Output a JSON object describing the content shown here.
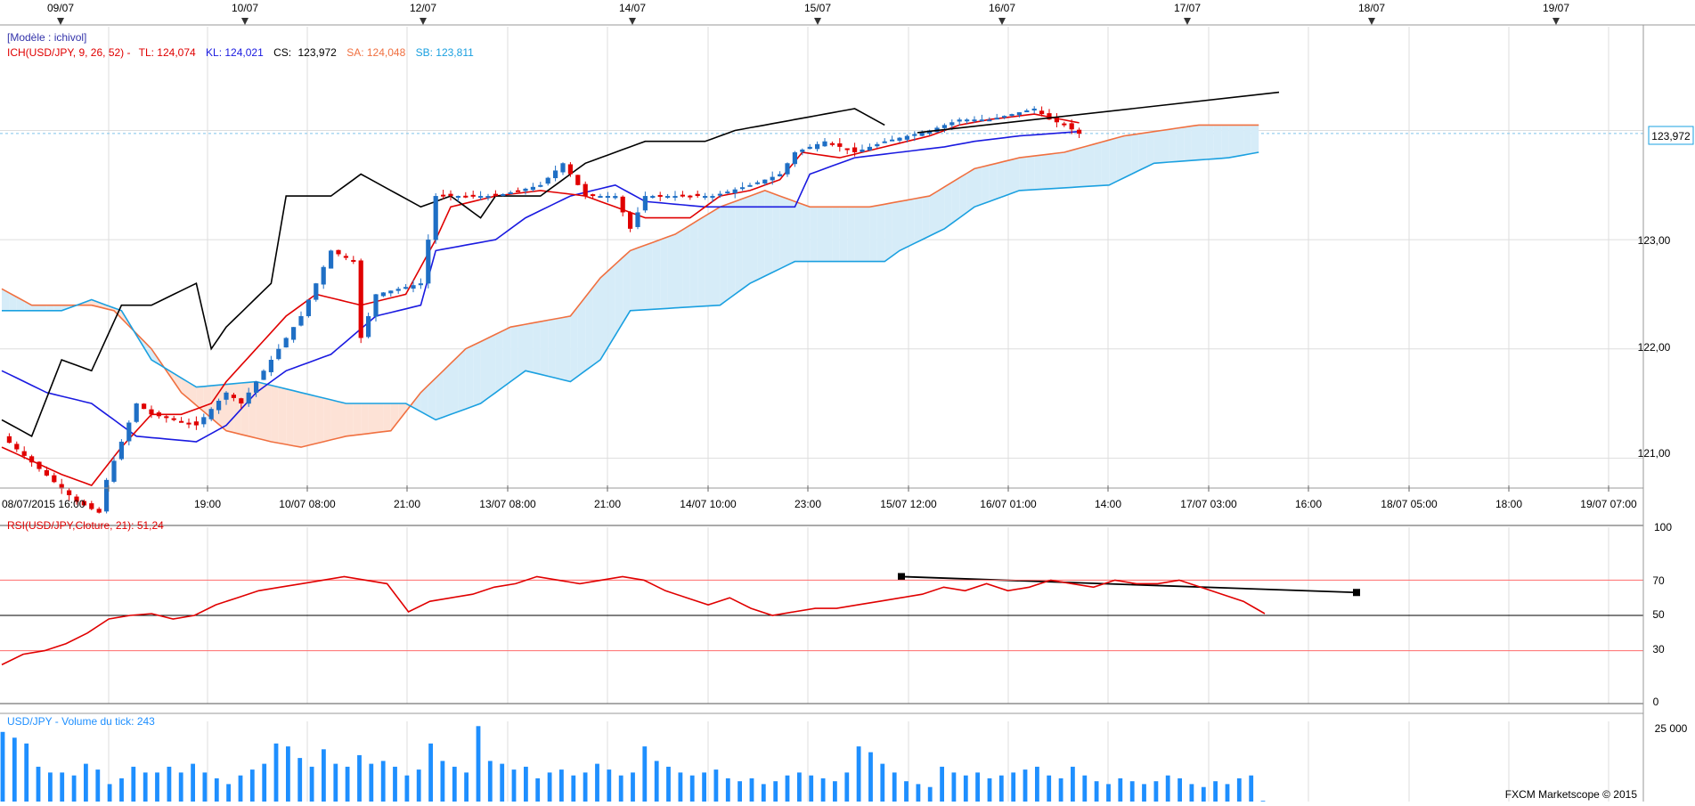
{
  "colors": {
    "bull": "#1f6fc5",
    "bear": "#e00000",
    "tenkan": "#e00000",
    "kijun": "#1a1ae0",
    "chikou": "#000000",
    "senkou_a": "#f07040",
    "senkou_b": "#1aa0e0",
    "cloud_bull": "#d6ecf8",
    "cloud_bear": "#fde2d6",
    "rsi": "#e00000",
    "volume": "#1e8fff",
    "grid": "#dddddd",
    "model_label": "#3333aa"
  },
  "top_dates": {
    "labels": [
      "09/07",
      "10/07",
      "12/07",
      "14/07",
      "15/07",
      "16/07",
      "17/07",
      "18/07",
      "19/07"
    ]
  },
  "main_panel": {
    "model_label": "[Modèle : ichivol]",
    "legend": {
      "ich": "ICH(USD/JPY, 9, 26, 52) -",
      "tl": "TL: 124,074",
      "kl": "KL: 124,021",
      "cs_label": "CS:",
      "cs_value": "123,972",
      "sa": "SA: 124,048",
      "sb": "SB: 123,811"
    },
    "current_price": "123,972",
    "y_ticks": [
      "123,00",
      "122,00",
      "121,00"
    ]
  },
  "bottom_axis": {
    "labels": [
      "08/07/2015 16:00",
      "19:00",
      "10/07 08:00",
      "21:00",
      "13/07 08:00",
      "21:00",
      "14/07 10:00",
      "23:00",
      "15/07 12:00",
      "16/07 01:00",
      "14:00",
      "17/07 03:00",
      "16:00",
      "18/07 05:00",
      "18:00",
      "19/07 07:00"
    ]
  },
  "rsi_panel": {
    "label": "RSI(USD/JPY,Cloture, 21): 51,24",
    "y_ticks": [
      "100",
      "70",
      "50",
      "30",
      "0"
    ]
  },
  "volume_panel": {
    "label": "USD/JPY - Volume du tick: 243",
    "y_tick": "25 000",
    "copyright": "FXCM Marketscope © 2015"
  },
  "chart_data": [
    {
      "type": "candlestick",
      "series": [
        {
          "name": "ICH(USD/JPY, 9, 26, 52)"
        }
      ],
      "x": [
        "08/07/2015 16:00",
        "19:00",
        "10/07 08:00",
        "21:00",
        "13/07 08:00",
        "21:00",
        "14/07 10:00",
        "23:00",
        "15/07 12:00",
        "16/07 01:00",
        "14:00",
        "17/07 03:00",
        "16:00",
        "18/07 05:00",
        "18:00",
        "19/07 07:00"
      ],
      "ylim": [
        120.75,
        124.95
      ],
      "grid": true,
      "anchors": {
        "close": [
          [
            0,
            121.2
          ],
          [
            10,
            120.6
          ],
          [
            13,
            120.5
          ],
          [
            14,
            120.8
          ],
          [
            18,
            121.5
          ],
          [
            20,
            121.4
          ],
          [
            26,
            121.3
          ],
          [
            30,
            121.6
          ],
          [
            32,
            121.5
          ],
          [
            36,
            121.9
          ],
          [
            40,
            122.3
          ],
          [
            44,
            122.9
          ],
          [
            47,
            122.8
          ],
          [
            48,
            122.1
          ],
          [
            50,
            122.5
          ],
          [
            56,
            122.6
          ],
          [
            58,
            123.4
          ],
          [
            62,
            123.4
          ],
          [
            66,
            123.4
          ],
          [
            72,
            123.5
          ],
          [
            75,
            123.7
          ],
          [
            78,
            123.4
          ],
          [
            82,
            123.4
          ],
          [
            84,
            123.1
          ],
          [
            86,
            123.4
          ],
          [
            95,
            123.4
          ],
          [
            100,
            123.5
          ],
          [
            104,
            123.6
          ],
          [
            106,
            123.8
          ],
          [
            110,
            123.9
          ],
          [
            114,
            123.8
          ],
          [
            118,
            123.9
          ],
          [
            124,
            124.0
          ],
          [
            128,
            124.1
          ],
          [
            132,
            124.1
          ],
          [
            138,
            124.2
          ],
          [
            140,
            124.1
          ],
          [
            142,
            124.05
          ],
          [
            144,
            123.97
          ]
        ],
        "tenkan": [
          [
            0,
            121.1
          ],
          [
            8,
            120.85
          ],
          [
            12,
            120.75
          ],
          [
            16,
            121.1
          ],
          [
            20,
            121.4
          ],
          [
            24,
            121.4
          ],
          [
            28,
            121.5
          ],
          [
            30,
            121.7
          ],
          [
            34,
            122.0
          ],
          [
            38,
            122.3
          ],
          [
            42,
            122.5
          ],
          [
            48,
            122.4
          ],
          [
            54,
            122.5
          ],
          [
            58,
            123.0
          ],
          [
            60,
            123.3
          ],
          [
            66,
            123.4
          ],
          [
            72,
            123.45
          ],
          [
            78,
            123.4
          ],
          [
            82,
            123.3
          ],
          [
            86,
            123.2
          ],
          [
            92,
            123.2
          ],
          [
            96,
            123.4
          ],
          [
            100,
            123.45
          ],
          [
            104,
            123.55
          ],
          [
            107,
            123.8
          ],
          [
            112,
            123.75
          ],
          [
            118,
            123.85
          ],
          [
            124,
            123.95
          ],
          [
            128,
            124.05
          ],
          [
            132,
            124.1
          ],
          [
            138,
            124.15
          ],
          [
            144,
            124.07
          ]
        ],
        "kijun": [
          [
            0,
            121.8
          ],
          [
            6,
            121.6
          ],
          [
            12,
            121.5
          ],
          [
            18,
            121.2
          ],
          [
            26,
            121.15
          ],
          [
            30,
            121.3
          ],
          [
            34,
            121.6
          ],
          [
            38,
            121.8
          ],
          [
            44,
            121.95
          ],
          [
            50,
            122.3
          ],
          [
            56,
            122.4
          ],
          [
            58,
            122.9
          ],
          [
            66,
            123.0
          ],
          [
            70,
            123.2
          ],
          [
            76,
            123.4
          ],
          [
            82,
            123.5
          ],
          [
            86,
            123.35
          ],
          [
            94,
            123.3
          ],
          [
            100,
            123.3
          ],
          [
            106,
            123.3
          ],
          [
            108,
            123.6
          ],
          [
            114,
            123.75
          ],
          [
            120,
            123.8
          ],
          [
            126,
            123.85
          ],
          [
            130,
            123.9
          ],
          [
            136,
            123.95
          ],
          [
            144,
            123.99
          ]
        ],
        "senkou_a": [
          [
            0,
            122.55
          ],
          [
            4,
            122.4
          ],
          [
            12,
            122.4
          ],
          [
            15,
            122.35
          ],
          [
            20,
            122.0
          ],
          [
            24,
            121.6
          ],
          [
            30,
            121.25
          ],
          [
            36,
            121.15
          ],
          [
            40,
            121.1
          ],
          [
            46,
            121.2
          ],
          [
            52,
            121.25
          ],
          [
            56,
            121.6
          ],
          [
            62,
            122.0
          ],
          [
            68,
            122.2
          ],
          [
            76,
            122.3
          ],
          [
            80,
            122.65
          ],
          [
            84,
            122.9
          ],
          [
            90,
            123.05
          ],
          [
            96,
            123.3
          ],
          [
            102,
            123.45
          ],
          [
            108,
            123.3
          ],
          [
            116,
            123.3
          ],
          [
            124,
            123.4
          ],
          [
            130,
            123.65
          ],
          [
            136,
            123.75
          ],
          [
            142,
            123.8
          ],
          [
            150,
            123.95
          ],
          [
            160,
            124.05
          ],
          [
            168,
            124.05
          ]
        ],
        "senkou_b": [
          [
            0,
            122.35
          ],
          [
            8,
            122.35
          ],
          [
            12,
            122.45
          ],
          [
            16,
            122.35
          ],
          [
            20,
            121.9
          ],
          [
            26,
            121.65
          ],
          [
            34,
            121.7
          ],
          [
            46,
            121.5
          ],
          [
            54,
            121.5
          ],
          [
            58,
            121.35
          ],
          [
            64,
            121.5
          ],
          [
            70,
            121.8
          ],
          [
            76,
            121.7
          ],
          [
            80,
            121.9
          ],
          [
            84,
            122.35
          ],
          [
            96,
            122.4
          ],
          [
            100,
            122.6
          ],
          [
            106,
            122.8
          ],
          [
            118,
            122.8
          ],
          [
            120,
            122.9
          ],
          [
            126,
            123.1
          ],
          [
            130,
            123.3
          ],
          [
            136,
            123.45
          ],
          [
            148,
            123.5
          ],
          [
            154,
            123.7
          ],
          [
            164,
            123.75
          ],
          [
            168,
            123.8
          ]
        ],
        "chikou": [
          [
            0,
            121.35
          ],
          [
            4,
            121.2
          ],
          [
            8,
            121.9
          ],
          [
            12,
            121.8
          ],
          [
            16,
            122.4
          ],
          [
            20,
            122.4
          ],
          [
            26,
            122.6
          ],
          [
            28,
            122.0
          ],
          [
            30,
            122.2
          ],
          [
            36,
            122.6
          ],
          [
            38,
            123.4
          ],
          [
            44,
            123.4
          ],
          [
            48,
            123.6
          ],
          [
            52,
            123.45
          ],
          [
            56,
            123.3
          ],
          [
            60,
            123.4
          ],
          [
            64,
            123.2
          ],
          [
            66,
            123.4
          ],
          [
            72,
            123.4
          ],
          [
            78,
            123.7
          ],
          [
            86,
            123.9
          ],
          [
            94,
            123.9
          ],
          [
            98,
            124.0
          ],
          [
            106,
            124.1
          ],
          [
            114,
            124.2
          ],
          [
            118,
            124.05
          ]
        ]
      }
    },
    {
      "type": "line",
      "series": [
        {
          "name": "RSI(USD/JPY,Cloture, 21)",
          "values": [
            22,
            28,
            30,
            34,
            40,
            48,
            50,
            51,
            48,
            50,
            56,
            60,
            64,
            66,
            68,
            70,
            72,
            70,
            68,
            52,
            58,
            60,
            62,
            66,
            68,
            72,
            70,
            68,
            70,
            72,
            70,
            64,
            60,
            56,
            60,
            54,
            50,
            52,
            54,
            54,
            56,
            58,
            60,
            62,
            66,
            64,
            68,
            64,
            66,
            70,
            68,
            66,
            70,
            68,
            68,
            70,
            66,
            62,
            58,
            51
          ]
        }
      ],
      "ylim": [
        0,
        100
      ],
      "horizontal_lines": [
        70,
        50,
        30
      ]
    },
    {
      "type": "bar",
      "series": [
        {
          "name": "USD/JPY - Volume du tick",
          "values": [
            24000,
            22000,
            20000,
            12000,
            10000,
            10000,
            9000,
            13000,
            11000,
            6000,
            8000,
            12000,
            10000,
            10000,
            12000,
            10000,
            13000,
            10000,
            8000,
            6000,
            9000,
            11000,
            13000,
            20000,
            19000,
            15000,
            12000,
            18000,
            13000,
            12000,
            16000,
            13000,
            14000,
            12000,
            9000,
            11000,
            20000,
            14000,
            12000,
            10000,
            26000,
            14000,
            13000,
            11000,
            12000,
            8000,
            10000,
            11000,
            9000,
            10000,
            13000,
            11000,
            9000,
            10000,
            19000,
            14000,
            12000,
            10000,
            9000,
            10000,
            11000,
            8000,
            7000,
            8000,
            6000,
            7000,
            9000,
            10000,
            9000,
            8000,
            7000,
            10000,
            19000,
            17000,
            13000,
            10000,
            7000,
            6000,
            5000,
            12000,
            10000,
            9000,
            10000,
            8000,
            9000,
            10000,
            11000,
            12000,
            9000,
            8000,
            12000,
            9000,
            7000,
            6000,
            8000,
            7000,
            6000,
            7000,
            9000,
            8000,
            6000,
            5000,
            7000,
            6000,
            8000,
            9000,
            243
          ]
        }
      ],
      "y_tick": 25000
    }
  ]
}
